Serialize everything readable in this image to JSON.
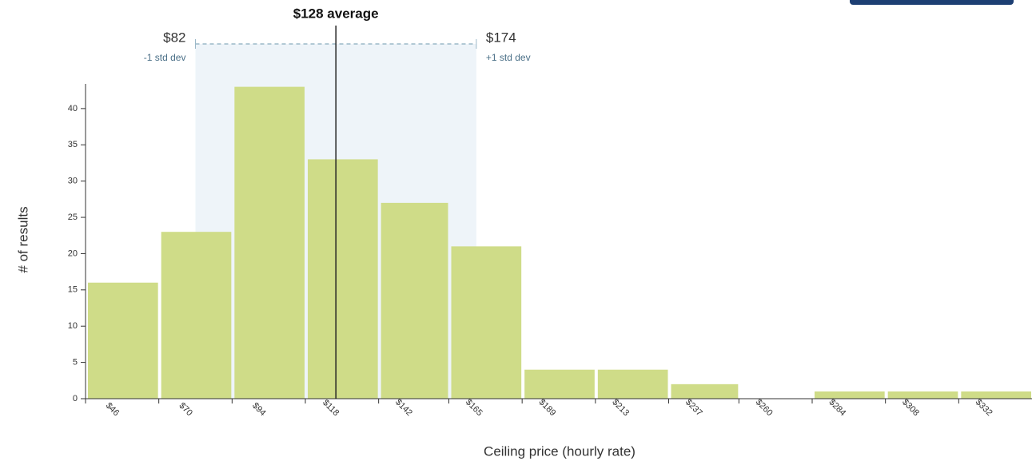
{
  "chart_data": {
    "type": "histogram",
    "xlabel": "Ceiling price (hourly rate)",
    "ylabel": "# of results",
    "bins": [
      46,
      70,
      94,
      118,
      142,
      165,
      189,
      213,
      237,
      260,
      284,
      308,
      332,
      356
    ],
    "values": [
      16,
      23,
      43,
      33,
      27,
      21,
      4,
      4,
      2,
      0,
      1,
      1,
      1
    ],
    "color": "#cfdc88",
    "xlim": [
      46,
      356
    ],
    "xticks": [
      {
        "value": 46,
        "label": "$46"
      },
      {
        "value": 70,
        "label": "$70"
      },
      {
        "value": 94,
        "label": "$94"
      },
      {
        "value": 118,
        "label": "$118"
      },
      {
        "value": 142,
        "label": "$142"
      },
      {
        "value": 165,
        "label": "$165"
      },
      {
        "value": 189,
        "label": "$189"
      },
      {
        "value": 213,
        "label": "$213"
      },
      {
        "value": 237,
        "label": "$237"
      },
      {
        "value": 260,
        "label": "$260"
      },
      {
        "value": 284,
        "label": "$284"
      },
      {
        "value": 308,
        "label": "$308"
      },
      {
        "value": 332,
        "label": "$332"
      }
    ],
    "ylim": [
      0,
      43.4
    ],
    "yticks": [
      0,
      5,
      10,
      15,
      20,
      25,
      30,
      35,
      40
    ],
    "average": {
      "value": 128,
      "label": "$128 average"
    },
    "minus_std": {
      "value": 82,
      "label": "$82",
      "note": "-1 std dev"
    },
    "plus_std": {
      "value": 174,
      "label": "$174",
      "note": "+1 std dev"
    }
  }
}
